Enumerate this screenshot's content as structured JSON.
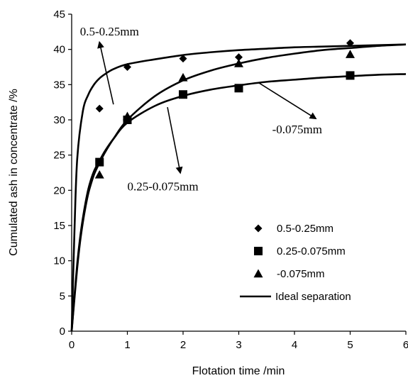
{
  "chart_data": {
    "type": "scatter",
    "xlabel": "Flotation time /min",
    "ylabel": "Cumulated ash in concentrate /%",
    "xlim": [
      0,
      6
    ],
    "ylim": [
      0,
      45
    ],
    "x_ticks": [
      0,
      1,
      2,
      3,
      4,
      5,
      6
    ],
    "y_ticks": [
      0,
      5,
      10,
      15,
      20,
      25,
      30,
      35,
      40,
      45
    ],
    "grid": false,
    "legend_position": "bottom-right",
    "series": [
      {
        "name": "0.5-0.25mm",
        "marker": "diamond",
        "x": [
          0.5,
          1,
          2,
          3,
          5
        ],
        "y": [
          31.6,
          37.5,
          38.7,
          38.9,
          40.9
        ],
        "fit_y": [
          0,
          14.2,
          24.5,
          31.2,
          35.0,
          37.2,
          38.6,
          39.3,
          39.8,
          40.1,
          40.4,
          40.6
        ]
      },
      {
        "name": "0.25-0.075mm",
        "marker": "square",
        "x": [
          0.5,
          1,
          2,
          3,
          5
        ],
        "y": [
          24.0,
          30.0,
          33.6,
          34.5,
          36.3
        ],
        "fit_y": [
          0,
          8.0,
          14.2,
          19.0,
          22.6,
          25.1,
          27.0,
          28.6,
          30.0,
          31.2,
          32.2,
          33.0,
          33.7,
          34.3,
          34.7,
          35.1,
          35.4,
          35.7,
          36.0,
          36.3,
          36.5
        ]
      },
      {
        "name": "-0.075mm",
        "marker": "triangle",
        "x": [
          0.5,
          1,
          2,
          3,
          5
        ],
        "y": [
          22.2,
          30.5,
          36.0,
          38.0,
          39.3
        ],
        "fit_y": [
          0,
          7.5,
          13.8,
          18.5,
          22.2,
          24.8,
          26.8,
          28.7,
          30.2,
          31.5,
          32.8,
          34.0,
          35.0,
          35.8,
          36.5,
          37.1,
          37.8,
          38.5,
          39.3,
          39.8,
          40.4
        ]
      }
    ],
    "fit_x_a": [
      0,
      0.05,
      0.1,
      0.2,
      0.3,
      0.4,
      0.5,
      0.6,
      0.75,
      1,
      1.5,
      2,
      2.5,
      3,
      3.5,
      4,
      4.5,
      5,
      5.5,
      6
    ],
    "fit_y_a": [
      0,
      14.2,
      24.5,
      31.2,
      33.6,
      35.0,
      35.9,
      36.5,
      37.2,
      37.9,
      38.6,
      39.2,
      39.6,
      39.9,
      40.1,
      40.3,
      40.4,
      40.5,
      40.6,
      40.7
    ],
    "fit_x_bc": [
      0,
      0.05,
      0.1,
      0.15,
      0.2,
      0.25,
      0.3,
      0.35,
      0.4,
      0.45,
      0.5,
      0.6,
      0.75,
      1,
      1.5,
      2,
      2.5,
      3,
      3.5,
      4,
      4.5,
      5,
      5.5,
      6
    ],
    "fit_y_b": [
      0,
      5.0,
      9.6,
      13.2,
      16.0,
      18.3,
      20.2,
      21.6,
      22.7,
      23.5,
      24.2,
      25.6,
      27.3,
      29.6,
      32.0,
      33.4,
      34.3,
      34.9,
      35.4,
      35.7,
      36.0,
      36.2,
      36.4,
      36.5
    ],
    "fit_y_c": [
      0,
      4.6,
      9.0,
      12.6,
      15.4,
      17.7,
      19.6,
      21.0,
      22.2,
      23.1,
      23.9,
      25.4,
      27.3,
      30.0,
      33.4,
      35.6,
      37.0,
      38.0,
      38.8,
      39.4,
      39.9,
      40.2,
      40.5,
      40.7
    ],
    "legend": [
      {
        "label": "0.5-0.25mm",
        "marker": "diamond"
      },
      {
        "label": "0.25-0.075mm",
        "marker": "square"
      },
      {
        "label": "-0.075mm",
        "marker": "triangle"
      },
      {
        "label": "Ideal separation",
        "marker": "line"
      }
    ],
    "annotations": [
      {
        "text": "0.5-0.25mm",
        "tx": 0.15,
        "ty": 42.0,
        "arrow_from": [
          0.75,
          32.2
        ],
        "arrow_to": [
          0.5,
          41.0
        ]
      },
      {
        "text": "0.25-0.075mm",
        "tx": 1.0,
        "ty": 20.0,
        "arrow_from": [
          1.72,
          31.8
        ],
        "arrow_to": [
          1.95,
          22.5
        ]
      },
      {
        "text": "-0.075mm",
        "tx": 3.6,
        "ty": 28.1,
        "arrow_from": [
          3.35,
          35.3
        ],
        "arrow_to": [
          4.38,
          30.2
        ]
      }
    ]
  }
}
